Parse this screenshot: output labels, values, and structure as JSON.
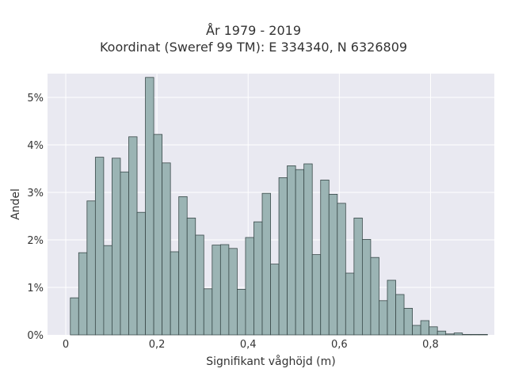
{
  "chart_data": {
    "type": "bar",
    "title": "År 1979 - 2019",
    "subtitle": "Koordinat (Sweref 99 TM): E 334340, N 6326809",
    "xlabel": "Signifikant våghöjd (m)",
    "ylabel": "Andel",
    "xlim": [
      -0.04,
      0.94
    ],
    "ylim": [
      0,
      5.5
    ],
    "x_ticks": [
      {
        "value": 0,
        "label": "0"
      },
      {
        "value": 0.2,
        "label": "0,2"
      },
      {
        "value": 0.4,
        "label": "0,4"
      },
      {
        "value": 0.6,
        "label": "0,6"
      },
      {
        "value": 0.8,
        "label": "0,8"
      }
    ],
    "y_ticks": [
      {
        "value": 0,
        "label": "0%"
      },
      {
        "value": 1,
        "label": "1%"
      },
      {
        "value": 2,
        "label": "2%"
      },
      {
        "value": 3,
        "label": "3%"
      },
      {
        "value": 4,
        "label": "4%"
      },
      {
        "value": 5,
        "label": "5%"
      }
    ],
    "bin_start": 0.01,
    "bin_width": 0.0183,
    "values": [
      0.78,
      1.73,
      2.82,
      3.74,
      1.88,
      3.72,
      3.43,
      4.17,
      2.58,
      5.42,
      4.22,
      3.62,
      1.75,
      2.91,
      2.46,
      2.1,
      0.97,
      1.89,
      1.9,
      1.82,
      0.96,
      2.05,
      2.38,
      2.98,
      1.49,
      3.31,
      3.56,
      3.48,
      3.6,
      1.69,
      3.26,
      2.96,
      2.77,
      1.3,
      2.46,
      2.01,
      1.63,
      0.72,
      1.15,
      0.85,
      0.56,
      0.2,
      0.3,
      0.17,
      0.08,
      0.02,
      0.04,
      0.01,
      0.01,
      0.01
    ],
    "grid": true,
    "colors": {
      "bar_fill": "#9bb4b4",
      "bar_edge": "#3a4a4a",
      "plot_bg": "#e9e9f1",
      "grid": "#ffffff"
    }
  }
}
